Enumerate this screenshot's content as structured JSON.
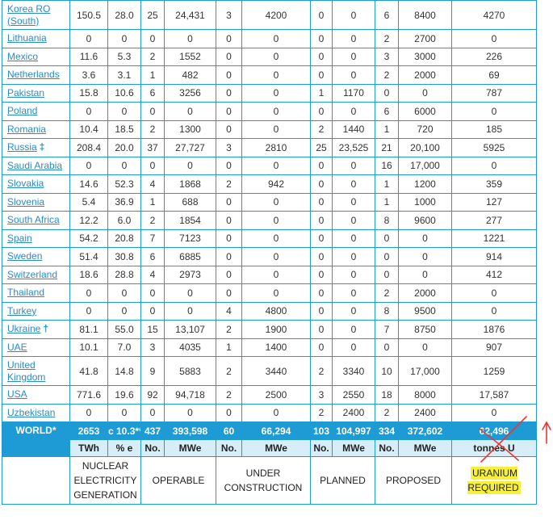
{
  "rows": [
    {
      "country": "Korea RO (South)",
      "sym": "",
      "twh": "150.5",
      "pct": "28.0",
      "op_no": "25",
      "op_mwe": "24,431",
      "uc_no": "3",
      "uc_mwe": "4200",
      "pl_no": "0",
      "pl_mwe": "0",
      "pr_no": "6",
      "pr_mwe": "8400",
      "u": "4270"
    },
    {
      "country": "Lithuania",
      "sym": "",
      "twh": "0",
      "pct": "0",
      "op_no": "0",
      "op_mwe": "0",
      "uc_no": "0",
      "uc_mwe": "0",
      "pl_no": "0",
      "pl_mwe": "0",
      "pr_no": "2",
      "pr_mwe": "2700",
      "u": "0"
    },
    {
      "country": "Mexico",
      "sym": "",
      "twh": "11.6",
      "pct": "5.3",
      "op_no": "2",
      "op_mwe": "1552",
      "uc_no": "0",
      "uc_mwe": "0",
      "pl_no": "0",
      "pl_mwe": "0",
      "pr_no": "3",
      "pr_mwe": "3000",
      "u": "226"
    },
    {
      "country": "Netherlands",
      "sym": "",
      "twh": "3.6",
      "pct": "3.1",
      "op_no": "1",
      "op_mwe": "482",
      "uc_no": "0",
      "uc_mwe": "0",
      "pl_no": "0",
      "pl_mwe": "0",
      "pr_no": "2",
      "pr_mwe": "2000",
      "u": "69"
    },
    {
      "country": "Pakistan",
      "sym": "",
      "twh": "15.8",
      "pct": "10.6",
      "op_no": "6",
      "op_mwe": "3256",
      "uc_no": "0",
      "uc_mwe": "0",
      "pl_no": "1",
      "pl_mwe": "1170",
      "pr_no": "0",
      "pr_mwe": "0",
      "u": "787"
    },
    {
      "country": "Poland",
      "sym": "",
      "twh": "0",
      "pct": "0",
      "op_no": "0",
      "op_mwe": "0",
      "uc_no": "0",
      "uc_mwe": "0",
      "pl_no": "0",
      "pl_mwe": "0",
      "pr_no": "6",
      "pr_mwe": "6000",
      "u": "0"
    },
    {
      "country": "Romania",
      "sym": "",
      "twh": "10.4",
      "pct": "18.5",
      "op_no": "2",
      "op_mwe": "1300",
      "uc_no": "0",
      "uc_mwe": "0",
      "pl_no": "2",
      "pl_mwe": "1440",
      "pr_no": "1",
      "pr_mwe": "720",
      "u": "185"
    },
    {
      "country": "Russia",
      "sym": "‡",
      "twh": "208.4",
      "pct": "20.0",
      "op_no": "37",
      "op_mwe": "27,727",
      "uc_no": "3",
      "uc_mwe": "2810",
      "pl_no": "25",
      "pl_mwe": "23,525",
      "pr_no": "21",
      "pr_mwe": "20,100",
      "u": "5925"
    },
    {
      "country": "Saudi Arabia",
      "sym": "",
      "twh": "0",
      "pct": "0",
      "op_no": "0",
      "op_mwe": "0",
      "uc_no": "0",
      "uc_mwe": "0",
      "pl_no": "0",
      "pl_mwe": "0",
      "pr_no": "16",
      "pr_mwe": "17,000",
      "u": "0"
    },
    {
      "country": "Slovakia",
      "sym": "",
      "twh": "14.6",
      "pct": "52.3",
      "op_no": "4",
      "op_mwe": "1868",
      "uc_no": "2",
      "uc_mwe": "942",
      "pl_no": "0",
      "pl_mwe": "0",
      "pr_no": "1",
      "pr_mwe": "1200",
      "u": "359"
    },
    {
      "country": "Slovenia",
      "sym": "",
      "twh": "5.4",
      "pct": "36.9",
      "op_no": "1",
      "op_mwe": "688",
      "uc_no": "0",
      "uc_mwe": "0",
      "pl_no": "0",
      "pl_mwe": "0",
      "pr_no": "1",
      "pr_mwe": "1000",
      "u": "127"
    },
    {
      "country": "South Africa",
      "sym": "",
      "twh": "12.2",
      "pct": "6.0",
      "op_no": "2",
      "op_mwe": "1854",
      "uc_no": "0",
      "uc_mwe": "0",
      "pl_no": "0",
      "pl_mwe": "0",
      "pr_no": "8",
      "pr_mwe": "9600",
      "u": "277"
    },
    {
      "country": "Spain",
      "sym": "",
      "twh": "54.2",
      "pct": "20.8",
      "op_no": "7",
      "op_mwe": "7123",
      "uc_no": "0",
      "uc_mwe": "0",
      "pl_no": "0",
      "pl_mwe": "0",
      "pr_no": "0",
      "pr_mwe": "0",
      "u": "1221"
    },
    {
      "country": "Sweden",
      "sym": "",
      "twh": "51.4",
      "pct": "30.8",
      "op_no": "6",
      "op_mwe": "6885",
      "uc_no": "0",
      "uc_mwe": "0",
      "pl_no": "0",
      "pl_mwe": "0",
      "pr_no": "0",
      "pr_mwe": "0",
      "u": "914"
    },
    {
      "country": "Switzerland",
      "sym": "",
      "twh": "18.6",
      "pct": "28.8",
      "op_no": "4",
      "op_mwe": "2973",
      "uc_no": "0",
      "uc_mwe": "0",
      "pl_no": "0",
      "pl_mwe": "0",
      "pr_no": "0",
      "pr_mwe": "0",
      "u": "412"
    },
    {
      "country": "Thailand",
      "sym": "",
      "twh": "0",
      "pct": "0",
      "op_no": "0",
      "op_mwe": "0",
      "uc_no": "0",
      "uc_mwe": "0",
      "pl_no": "0",
      "pl_mwe": "0",
      "pr_no": "2",
      "pr_mwe": "2000",
      "u": "0"
    },
    {
      "country": "Turkey",
      "sym": "",
      "twh": "0",
      "pct": "0",
      "op_no": "0",
      "op_mwe": "0",
      "uc_no": "4",
      "uc_mwe": "4800",
      "pl_no": "0",
      "pl_mwe": "0",
      "pr_no": "8",
      "pr_mwe": "9500",
      "u": "0"
    },
    {
      "country": "Ukraine",
      "sym": "†",
      "twh": "81.1",
      "pct": "55.0",
      "op_no": "15",
      "op_mwe": "13,107",
      "uc_no": "2",
      "uc_mwe": "1900",
      "pl_no": "0",
      "pl_mwe": "0",
      "pr_no": "7",
      "pr_mwe": "8750",
      "u": "1876"
    },
    {
      "country": "UAE",
      "sym": "",
      "twh": "10.1",
      "pct": "7.0",
      "op_no": "3",
      "op_mwe": "4035",
      "uc_no": "1",
      "uc_mwe": "1400",
      "pl_no": "0",
      "pl_mwe": "0",
      "pr_no": "0",
      "pr_mwe": "0",
      "u": "907"
    },
    {
      "country": "United Kingdom",
      "sym": "",
      "twh": "41.8",
      "pct": "14.8",
      "op_no": "9",
      "op_mwe": "5883",
      "uc_no": "2",
      "uc_mwe": "3440",
      "pl_no": "2",
      "pl_mwe": "3340",
      "pr_no": "10",
      "pr_mwe": "17,000",
      "u": "1259"
    },
    {
      "country": "USA",
      "sym": "",
      "twh": "771.6",
      "pct": "19.6",
      "op_no": "92",
      "op_mwe": "94,718",
      "uc_no": "2",
      "uc_mwe": "2500",
      "pl_no": "3",
      "pl_mwe": "2550",
      "pr_no": "18",
      "pr_mwe": "8000",
      "u": "17,587"
    },
    {
      "country": "Uzbekistan",
      "sym": "",
      "twh": "0",
      "pct": "0",
      "op_no": "0",
      "op_mwe": "0",
      "uc_no": "0",
      "uc_mwe": "0",
      "pl_no": "2",
      "pl_mwe": "2400",
      "pr_no": "2",
      "pr_mwe": "2400",
      "u": "0"
    }
  ],
  "world": {
    "label": "WORLD*",
    "twh": "2653",
    "pct": "c 10.3**",
    "op_no": "437",
    "op_mwe": "393,598",
    "uc_no": "60",
    "uc_mwe": "66,294",
    "pl_no": "103",
    "pl_mwe": "104,997",
    "pr_no": "334",
    "pr_mwe": "372,602",
    "u": "62,496"
  },
  "units": {
    "twh": "TWh",
    "pct": "% e",
    "op_no": "No.",
    "op_mwe": "MWe",
    "uc_no": "No.",
    "uc_mwe": "MWe",
    "pl_no": "No.",
    "pl_mwe": "MWe",
    "pr_no": "No.",
    "pr_mwe": "MWe",
    "u": "tonnes U"
  },
  "headers": {
    "generation": "NUCLEAR ELECTRICITY GENERATION",
    "operable": "OPERABLE",
    "under_construction": "UNDER CONSTRUCTION",
    "planned": "PLANNED",
    "proposed": "PROPOSED",
    "uranium": "URANIUM REQUIRED"
  },
  "annotation": {
    "color": "#e53935"
  }
}
